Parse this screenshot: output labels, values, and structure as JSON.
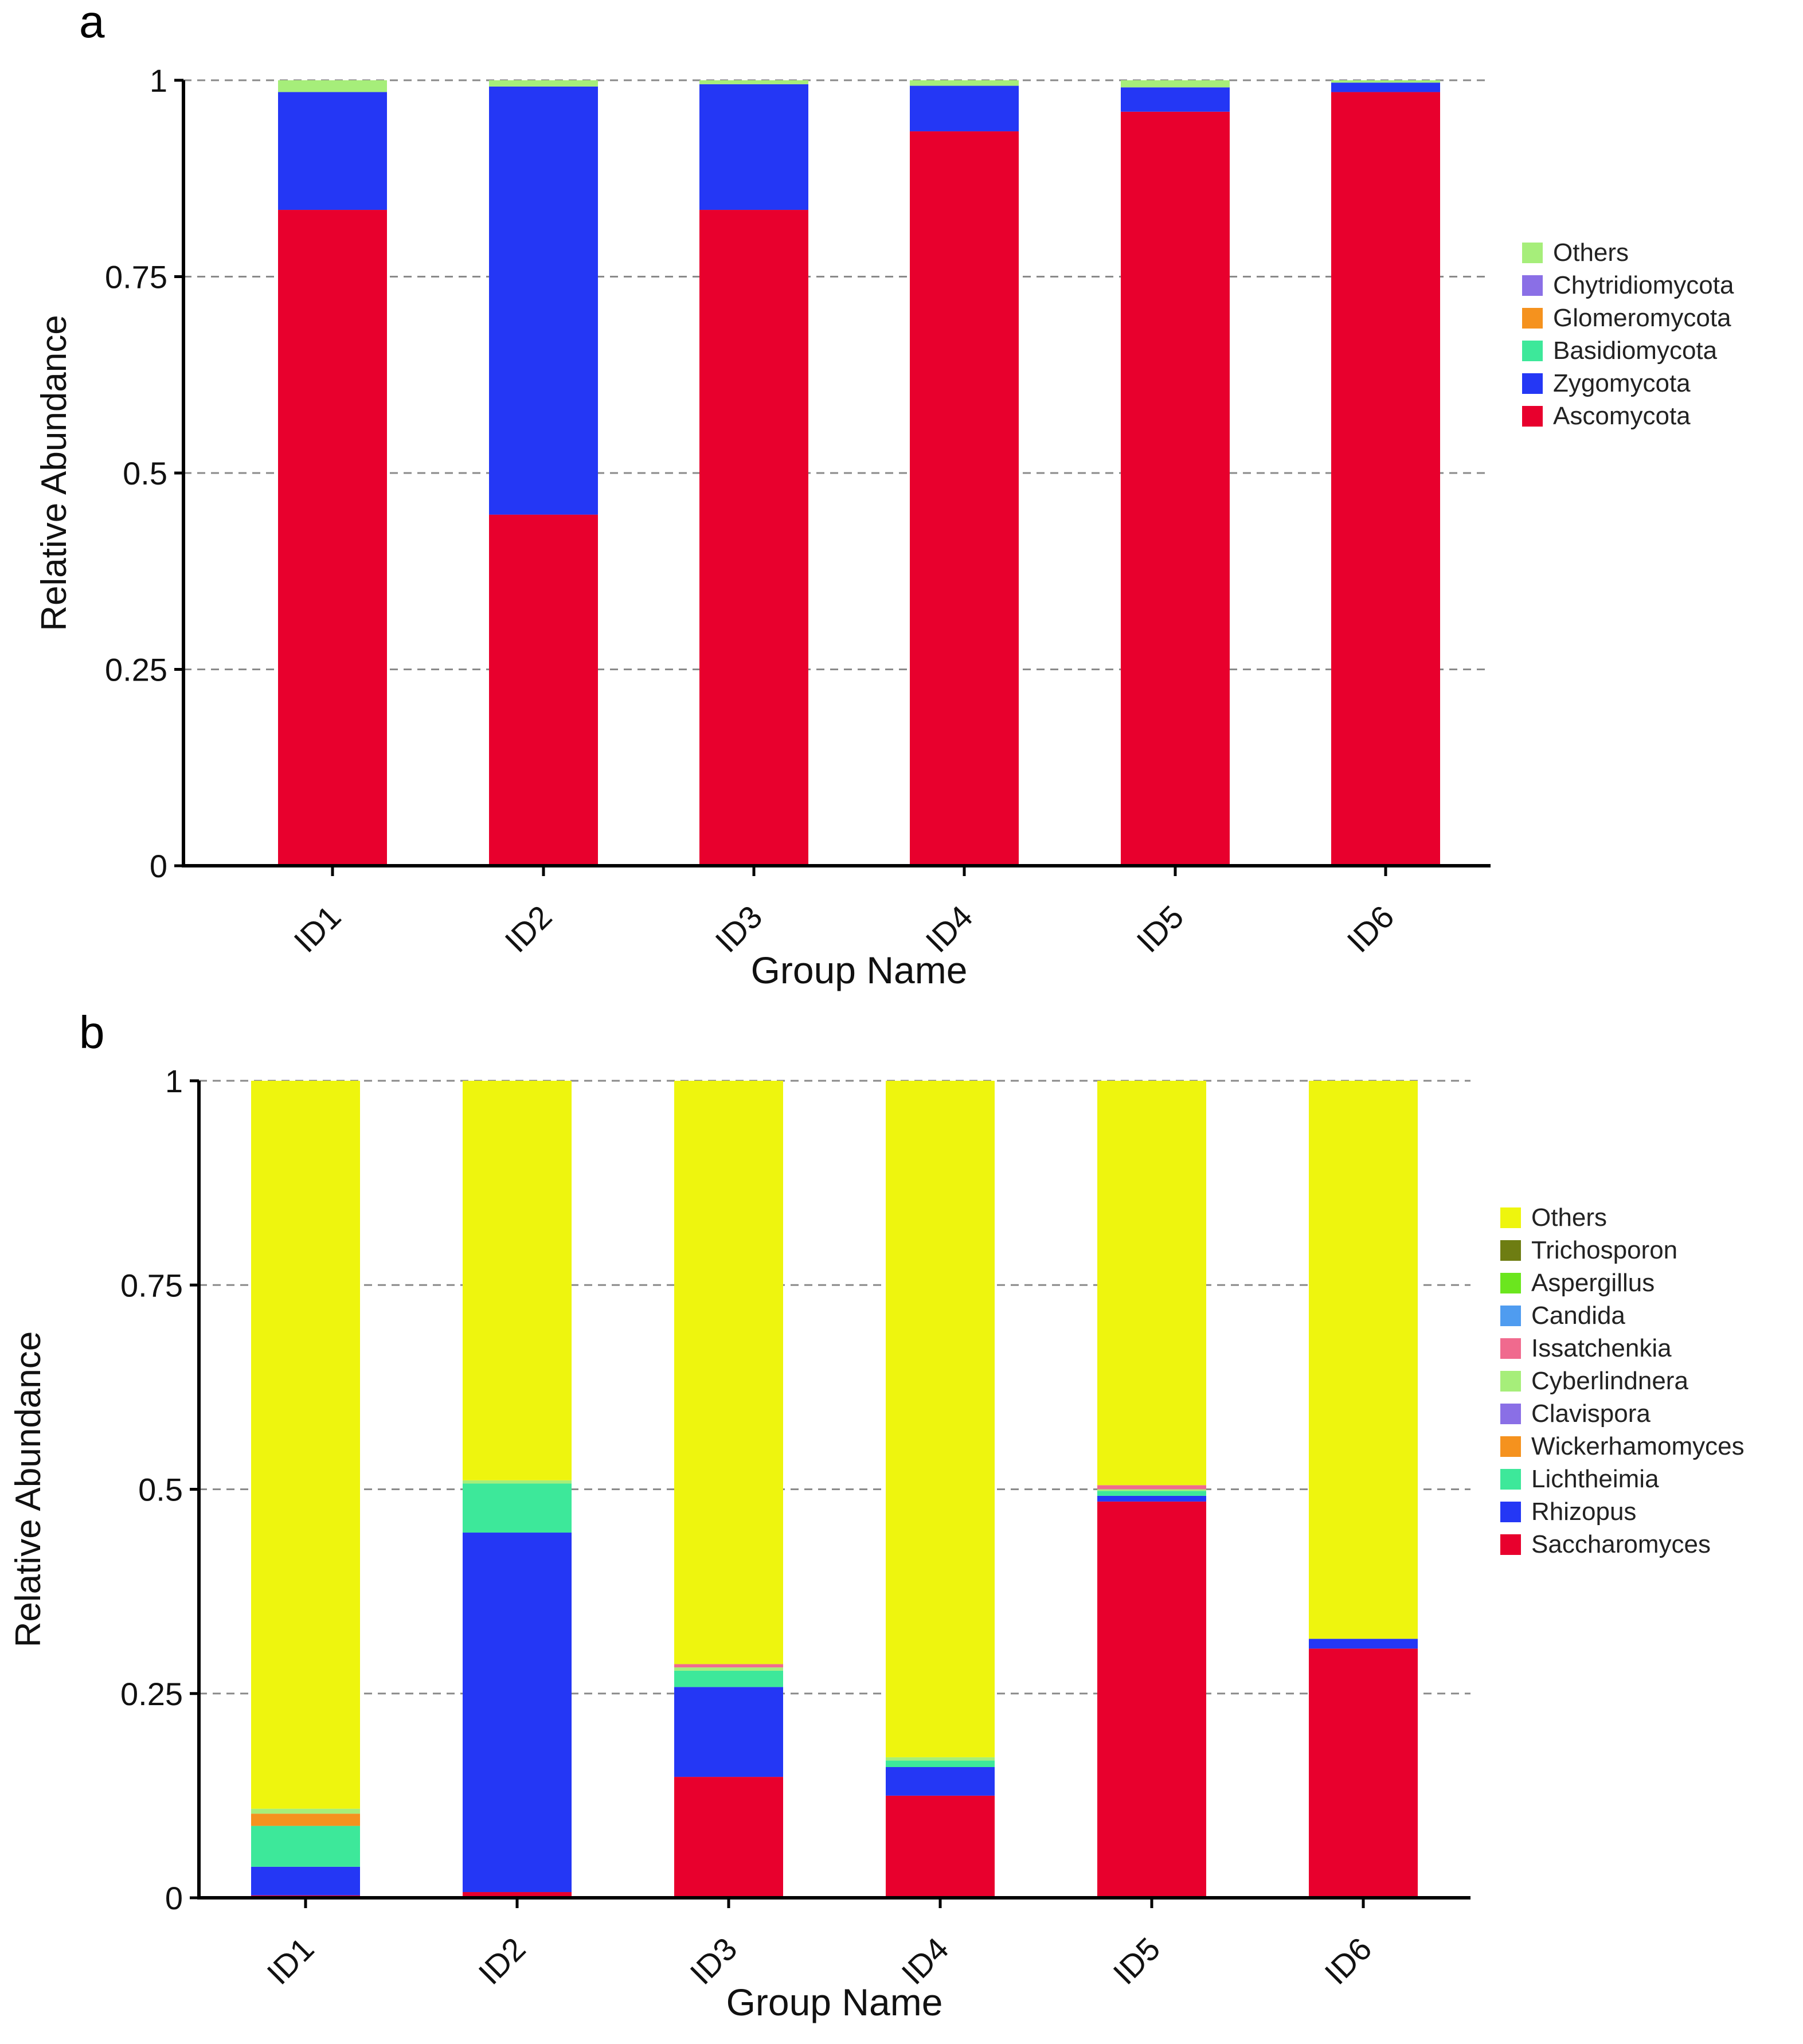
{
  "chart_data": [
    {
      "panel": "a",
      "type": "bar",
      "stacked": true,
      "xlabel": "Group Name",
      "ylabel": "Relative Abundance",
      "categories": [
        "ID1",
        "ID2",
        "ID3",
        "ID4",
        "ID5",
        "ID6"
      ],
      "yticks": [
        "0",
        "0.25",
        "0.5",
        "0.75",
        "1"
      ],
      "ylim": [
        0,
        1
      ],
      "grid": "dashed horizontal",
      "legend_position": "right",
      "series": [
        {
          "name": "Ascomycota",
          "color": "#e8002d",
          "values": [
            0.835,
            0.447,
            0.835,
            0.935,
            0.96,
            0.985
          ]
        },
        {
          "name": "Zygomycota",
          "color": "#2437f5",
          "values": [
            0.15,
            0.545,
            0.16,
            0.058,
            0.031,
            0.012
          ]
        },
        {
          "name": "Basidiomycota",
          "color": "#3de89a",
          "values": [
            0.0,
            0.0,
            0.0,
            0.0,
            0.0,
            0.0
          ]
        },
        {
          "name": "Glomeromycota",
          "color": "#f5921e",
          "values": [
            0.0,
            0.0,
            0.0,
            0.0,
            0.0,
            0.0
          ]
        },
        {
          "name": "Chytridiomycota",
          "color": "#8a6fe6",
          "values": [
            0.0,
            0.0,
            0.0,
            0.0,
            0.0,
            0.0
          ]
        },
        {
          "name": "Others",
          "color": "#a6ee7a",
          "values": [
            0.015,
            0.008,
            0.005,
            0.007,
            0.009,
            0.003
          ]
        }
      ],
      "legend_order": [
        "Others",
        "Chytridiomycota",
        "Glomeromycota",
        "Basidiomycota",
        "Zygomycota",
        "Ascomycota"
      ]
    },
    {
      "panel": "b",
      "type": "bar",
      "stacked": true,
      "xlabel": "Group Name",
      "ylabel": "Relative Abundance",
      "categories": [
        "ID1",
        "ID2",
        "ID3",
        "ID4",
        "ID5",
        "ID6"
      ],
      "yticks": [
        "0",
        "0.25",
        "0.5",
        "0.75",
        "1"
      ],
      "ylim": [
        0,
        1
      ],
      "grid": "dashed horizontal",
      "legend_position": "right",
      "series": [
        {
          "name": "Saccharomyces",
          "color": "#e8002d",
          "values": [
            0.003,
            0.007,
            0.148,
            0.125,
            0.485,
            0.305
          ]
        },
        {
          "name": "Rhizopus",
          "color": "#2437f5",
          "values": [
            0.035,
            0.44,
            0.11,
            0.035,
            0.007,
            0.012
          ]
        },
        {
          "name": "Lichtheimia",
          "color": "#3de89a",
          "values": [
            0.05,
            0.06,
            0.02,
            0.008,
            0.006,
            0.0
          ]
        },
        {
          "name": "Wickerhamomyces",
          "color": "#f5921e",
          "values": [
            0.015,
            0.0,
            0.0,
            0.0,
            0.0,
            0.0
          ]
        },
        {
          "name": "Clavispora",
          "color": "#8a6fe6",
          "values": [
            0.0,
            0.0,
            0.0,
            0.0,
            0.0,
            0.0
          ]
        },
        {
          "name": "Cyberlindnera",
          "color": "#a6ee7a",
          "values": [
            0.006,
            0.004,
            0.004,
            0.004,
            0.002,
            0.0
          ]
        },
        {
          "name": "Issatchenkia",
          "color": "#f06a8e",
          "values": [
            0.0,
            0.0,
            0.004,
            0.0,
            0.005,
            0.0
          ]
        },
        {
          "name": "Candida",
          "color": "#4f9cf0",
          "values": [
            0.0,
            0.0,
            0.0,
            0.0,
            0.0,
            0.0
          ]
        },
        {
          "name": "Aspergillus",
          "color": "#6be61e",
          "values": [
            0.0,
            0.0,
            0.0,
            0.0,
            0.0,
            0.0
          ]
        },
        {
          "name": "Trichosporon",
          "color": "#6e7d12",
          "values": [
            0.0,
            0.0,
            0.0,
            0.0,
            0.0,
            0.0
          ]
        },
        {
          "name": "Others",
          "color": "#eef50e",
          "values": [
            0.891,
            0.489,
            0.714,
            0.828,
            0.495,
            0.683
          ]
        }
      ],
      "legend_order": [
        "Others",
        "Trichosporon",
        "Aspergillus",
        "Candida",
        "Issatchenkia",
        "Cyberlindnera",
        "Clavispora",
        "Wickerhamomyces",
        "Lichtheimia",
        "Rhizopus",
        "Saccharomyces"
      ]
    }
  ],
  "panels": {
    "a": {
      "letter": "a"
    },
    "b": {
      "letter": "b"
    }
  }
}
